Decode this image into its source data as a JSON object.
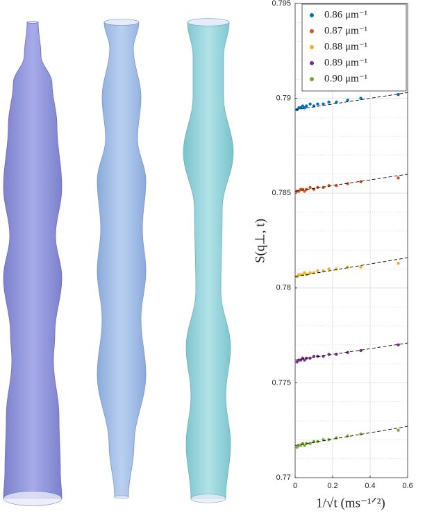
{
  "chart_data": {
    "type": "scatter",
    "xlabel": "1/√t (ms⁻¹ᐟ²)",
    "ylabel": "S(q⊥, t)",
    "x": [
      0.01,
      0.02,
      0.03,
      0.04,
      0.05,
      0.06,
      0.08,
      0.1,
      0.12,
      0.15,
      0.18,
      0.22,
      0.28,
      0.35,
      0.55
    ],
    "series": [
      {
        "name": "0.86 μm⁻¹",
        "color": "#0072bd",
        "values": [
          0.7894,
          0.7895,
          0.7895,
          0.7896,
          0.7895,
          0.7896,
          0.7897,
          0.7896,
          0.7897,
          0.7897,
          0.7898,
          0.7898,
          0.7899,
          0.79,
          0.7902
        ],
        "fit": {
          "x": [
            0,
            0.6
          ],
          "y": [
            0.7894,
            0.7903
          ]
        }
      },
      {
        "name": "0.87 μm⁻¹",
        "color": "#d95319",
        "values": [
          0.7851,
          0.7851,
          0.7852,
          0.7852,
          0.7851,
          0.7852,
          0.7853,
          0.7852,
          0.7853,
          0.7853,
          0.7854,
          0.7854,
          0.7855,
          0.7856,
          0.7858
        ],
        "fit": {
          "x": [
            0,
            0.6
          ],
          "y": [
            0.7851,
            0.786
          ]
        }
      },
      {
        "name": "0.88 μm⁻¹",
        "color": "#edb120",
        "values": [
          0.7806,
          0.7807,
          0.7807,
          0.7807,
          0.7808,
          0.7807,
          0.7808,
          0.7808,
          0.7809,
          0.7809,
          0.781,
          0.781,
          0.7811,
          0.7811,
          0.7813
        ],
        "fit": {
          "x": [
            0,
            0.6
          ],
          "y": [
            0.7806,
            0.7816
          ]
        }
      },
      {
        "name": "0.89 μm⁻¹",
        "color": "#7e2f8e",
        "values": [
          0.7761,
          0.7762,
          0.7762,
          0.7763,
          0.7762,
          0.7763,
          0.7763,
          0.7764,
          0.7764,
          0.7764,
          0.7765,
          0.7765,
          0.7766,
          0.7767,
          0.777
        ],
        "fit": {
          "x": [
            0,
            0.6
          ],
          "y": [
            0.7762,
            0.7771
          ]
        }
      },
      {
        "name": "0.90 μm⁻¹",
        "color": "#77ac30",
        "values": [
          0.7716,
          0.7717,
          0.7717,
          0.7718,
          0.7717,
          0.7718,
          0.7718,
          0.7719,
          0.7719,
          0.772,
          0.772,
          0.7721,
          0.7722,
          0.7723,
          0.7725
        ],
        "fit": {
          "x": [
            0,
            0.6
          ],
          "y": [
            0.7717,
            0.7727
          ]
        }
      }
    ],
    "xlim": [
      0,
      0.6
    ],
    "xticks": [
      0,
      0.2,
      0.4,
      0.6
    ],
    "ylim": [
      0.77,
      0.795
    ],
    "yticks": [
      0.77,
      0.775,
      0.78,
      0.785,
      0.79,
      0.795
    ],
    "grid": true,
    "minor_grid": true,
    "legend": "upper right"
  }
}
